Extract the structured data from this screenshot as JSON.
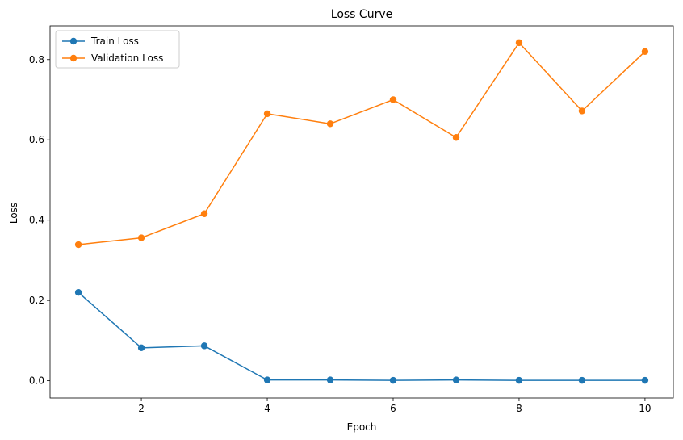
{
  "chart_data": {
    "type": "line",
    "title": "Loss Curve",
    "xlabel": "Epoch",
    "ylabel": "Loss",
    "x": [
      1,
      2,
      3,
      4,
      5,
      6,
      7,
      8,
      9,
      10
    ],
    "xlim": [
      0.55,
      10.45
    ],
    "ylim": [
      -0.043,
      0.884
    ],
    "xticks": [
      2,
      4,
      6,
      8,
      10
    ],
    "xtick_labels": [
      "2",
      "4",
      "6",
      "8",
      "10"
    ],
    "yticks": [
      0.0,
      0.2,
      0.4,
      0.6,
      0.8
    ],
    "ytick_labels": [
      "0.0",
      "0.2",
      "0.4",
      "0.6",
      "0.8"
    ],
    "grid": false,
    "legend_position": "top-left",
    "series": [
      {
        "name": "Train Loss",
        "color": "#1f77b4",
        "marker": "circle",
        "values": [
          0.22,
          0.082,
          0.087,
          0.002,
          0.002,
          0.001,
          0.002,
          0.001,
          0.001,
          0.001
        ]
      },
      {
        "name": "Validation Loss",
        "color": "#ff7f0e",
        "marker": "circle",
        "values": [
          0.339,
          0.356,
          0.416,
          0.665,
          0.64,
          0.7,
          0.606,
          0.842,
          0.672,
          0.82
        ]
      }
    ]
  }
}
